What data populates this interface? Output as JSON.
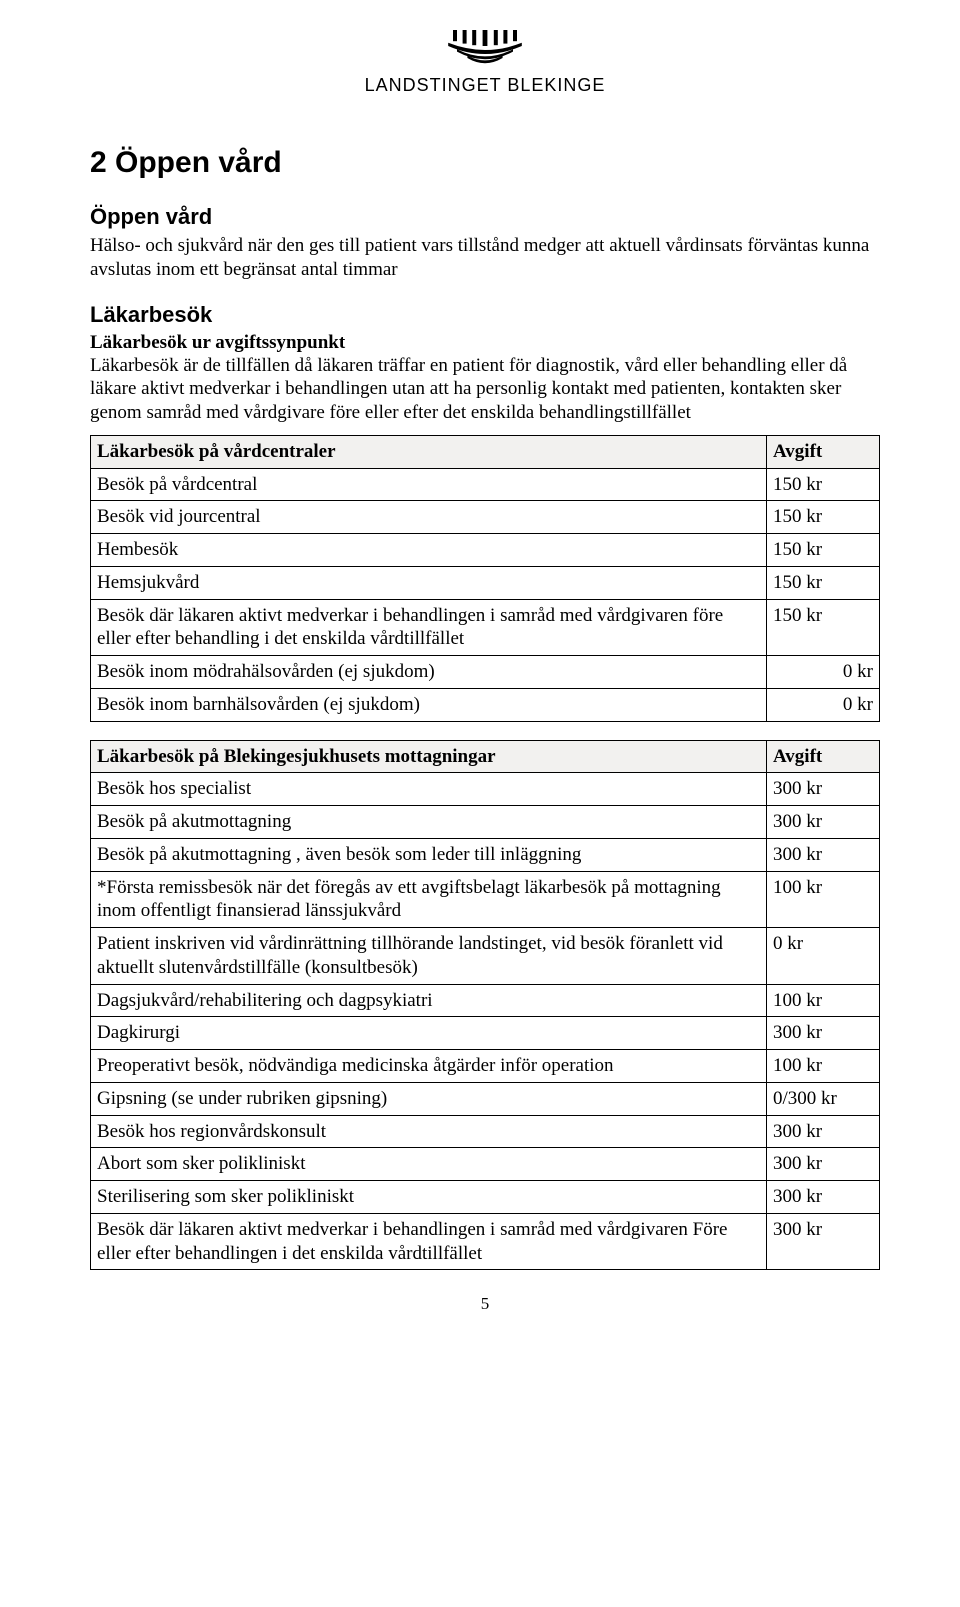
{
  "logo_text": "LANDSTINGET BLEKINGE",
  "section_title": "2 Öppen vård",
  "subsection1_title": "Öppen vård",
  "subsection1_body": "Hälso- och sjukvård när den ges till patient vars tillstånd medger att aktuell vårdinsats förväntas kunna avslutas inom ett begränsat antal timmar",
  "subsection2_title": "Läkarbesök",
  "subsection2_lead": "Läkarbesök ur avgiftssynpunkt",
  "subsection2_body": "Läkarbesök är de tillfällen då läkaren träffar en patient för diagnostik, vård eller behandling eller då läkare aktivt medverkar i behandlingen utan att ha personlig kontakt med patienten, kontakten sker genom samråd med vårdgivare före eller efter det enskilda behandlingstillfället",
  "table1": {
    "header_desc": "Läkarbesök på vårdcentraler",
    "header_fee": "Avgift",
    "background_header": "#f2f1ef",
    "rows": [
      {
        "desc": "Besök på vårdcentral",
        "fee": "150 kr"
      },
      {
        "desc": "Besök vid jourcentral",
        "fee": "150 kr"
      },
      {
        "desc": "Hembesök",
        "fee": "150 kr"
      },
      {
        "desc": "Hemsjukvård",
        "fee": "150 kr"
      },
      {
        "desc": "Besök där läkaren aktivt medverkar i behandlingen i samråd med vårdgivaren före eller efter behandling i det enskilda vårdtillfället",
        "fee": "150 kr"
      },
      {
        "desc": "Besök inom mödrahälsovården (ej sjukdom)",
        "fee": "0 kr",
        "fee_align": "right"
      },
      {
        "desc": "Besök inom barnhälsovården (ej sjukdom)",
        "fee": "0 kr",
        "fee_align": "right"
      }
    ]
  },
  "table2": {
    "header_desc": "Läkarbesök på Blekingesjukhusets mottagningar",
    "header_fee": "Avgift",
    "background_header": "#f2f1ef",
    "rows": [
      {
        "desc": "Besök hos specialist",
        "fee": "300 kr"
      },
      {
        "desc": "Besök på akutmottagning",
        "fee": "300 kr"
      },
      {
        "desc": "Besök på akutmottagning , även besök som leder till inläggning",
        "fee": "300 kr"
      },
      {
        "desc": "*Första remissbesök när det föregås av ett avgiftsbelagt läkarbesök på mottagning inom offentligt finansierad länssjukvård",
        "fee": "100 kr"
      },
      {
        "desc": "Patient inskriven vid vårdinrättning tillhörande landstinget, vid besök föranlett vid aktuellt slutenvårdstillfälle (konsultbesök)",
        "fee": "0 kr"
      },
      {
        "desc": "Dagsjukvård/rehabilitering och dagpsykiatri",
        "fee": "100 kr"
      },
      {
        "desc": "Dagkirurgi",
        "fee": "300 kr"
      },
      {
        "desc": "Preoperativt besök, nödvändiga medicinska åtgärder inför operation",
        "fee": "100 kr"
      },
      {
        "desc": "Gipsning (se under rubriken gipsning)",
        "fee": "0/300 kr"
      },
      {
        "desc": "Besök hos regionvårdskonsult",
        "fee": "300 kr"
      },
      {
        "desc": "Abort som sker polikliniskt",
        "fee": "300 kr"
      },
      {
        "desc": "Sterilisering som sker polikliniskt",
        "fee": "300 kr"
      },
      {
        "desc": "Besök där läkaren aktivt medverkar i behandlingen i samråd med vårdgivaren Före eller efter behandlingen i det enskilda vårdtillfället",
        "fee": "300 kr"
      }
    ]
  },
  "page_number": "5"
}
